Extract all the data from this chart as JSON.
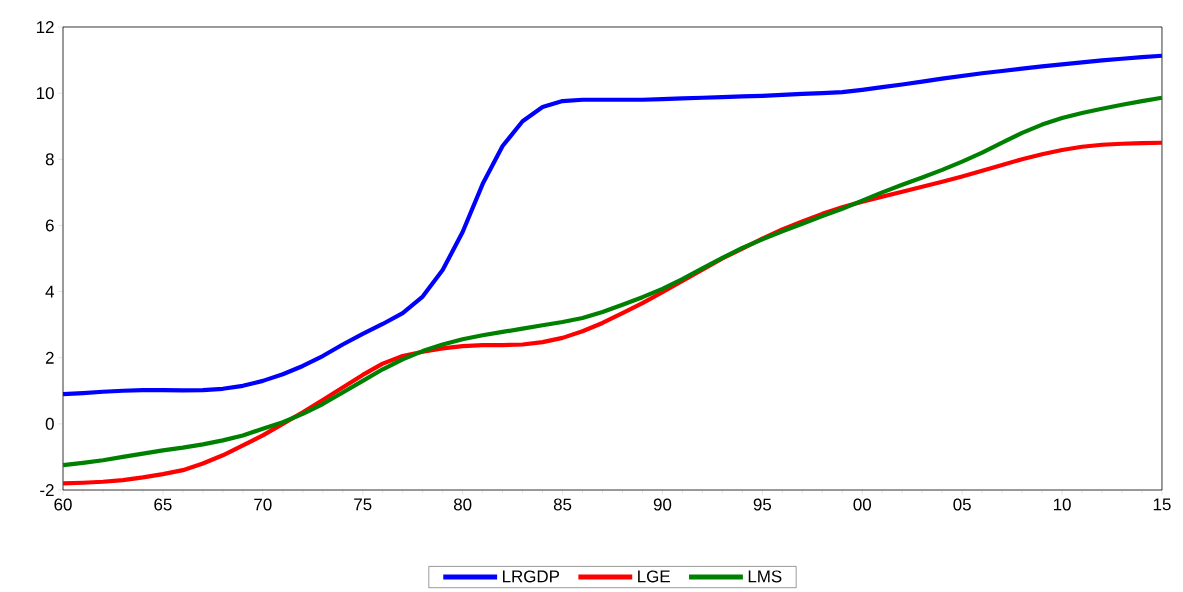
{
  "chart_data": {
    "type": "line",
    "x": [
      1960,
      1961,
      1962,
      1963,
      1964,
      1965,
      1966,
      1967,
      1968,
      1969,
      1970,
      1971,
      1972,
      1973,
      1974,
      1975,
      1976,
      1977,
      1978,
      1979,
      1980,
      1981,
      1982,
      1983,
      1984,
      1985,
      1986,
      1987,
      1988,
      1989,
      1990,
      1991,
      1992,
      1993,
      1994,
      1995,
      1996,
      1997,
      1998,
      1999,
      2000,
      2001,
      2002,
      2003,
      2004,
      2005,
      2006,
      2007,
      2008,
      2009,
      2010,
      2011,
      2012,
      2013,
      2014,
      2015
    ],
    "series": [
      {
        "name": "LRGDP",
        "color": "#0000ff",
        "values": [
          0.9,
          0.93,
          0.97,
          1.0,
          1.02,
          1.02,
          1.01,
          1.02,
          1.06,
          1.15,
          1.3,
          1.5,
          1.75,
          2.05,
          2.4,
          2.72,
          3.02,
          3.35,
          3.85,
          4.65,
          5.8,
          7.25,
          8.4,
          9.15,
          9.58,
          9.76,
          9.8,
          9.8,
          9.8,
          9.8,
          9.82,
          9.84,
          9.86,
          9.88,
          9.9,
          9.92,
          9.95,
          9.98,
          10.0,
          10.03,
          10.1,
          10.18,
          10.26,
          10.35,
          10.44,
          10.52,
          10.6,
          10.67,
          10.74,
          10.81,
          10.87,
          10.93,
          10.99,
          11.04,
          11.09,
          11.13
        ]
      },
      {
        "name": "LGE",
        "color": "#ff0000",
        "values": [
          -1.8,
          -1.78,
          -1.75,
          -1.7,
          -1.62,
          -1.52,
          -1.4,
          -1.2,
          -0.95,
          -0.65,
          -0.35,
          0.0,
          0.35,
          0.72,
          1.1,
          1.48,
          1.82,
          2.05,
          2.18,
          2.28,
          2.35,
          2.38,
          2.38,
          2.4,
          2.47,
          2.6,
          2.8,
          3.05,
          3.35,
          3.65,
          3.98,
          4.32,
          4.66,
          5.0,
          5.3,
          5.6,
          5.88,
          6.12,
          6.35,
          6.55,
          6.72,
          6.87,
          7.02,
          7.17,
          7.32,
          7.48,
          7.65,
          7.83,
          8.0,
          8.15,
          8.28,
          8.38,
          8.44,
          8.47,
          8.49,
          8.5
        ]
      },
      {
        "name": "LMS",
        "color": "#008000",
        "values": [
          -1.25,
          -1.18,
          -1.1,
          -1.0,
          -0.9,
          -0.8,
          -0.72,
          -0.62,
          -0.5,
          -0.35,
          -0.15,
          0.05,
          0.3,
          0.6,
          0.95,
          1.3,
          1.65,
          1.95,
          2.2,
          2.4,
          2.56,
          2.68,
          2.78,
          2.88,
          2.98,
          3.08,
          3.2,
          3.38,
          3.6,
          3.83,
          4.08,
          4.38,
          4.7,
          5.02,
          5.32,
          5.58,
          5.82,
          6.05,
          6.28,
          6.5,
          6.75,
          7.0,
          7.23,
          7.45,
          7.68,
          7.93,
          8.2,
          8.5,
          8.8,
          9.05,
          9.25,
          9.4,
          9.53,
          9.65,
          9.76,
          9.86
        ]
      }
    ],
    "xlim": [
      1960,
      2015
    ],
    "xticks": [
      {
        "value": 1960,
        "label": "60"
      },
      {
        "value": 1965,
        "label": "65"
      },
      {
        "value": 1970,
        "label": "70"
      },
      {
        "value": 1975,
        "label": "75"
      },
      {
        "value": 1980,
        "label": "80"
      },
      {
        "value": 1985,
        "label": "85"
      },
      {
        "value": 1990,
        "label": "90"
      },
      {
        "value": 1995,
        "label": "95"
      },
      {
        "value": 2000,
        "label": "00"
      },
      {
        "value": 2005,
        "label": "05"
      },
      {
        "value": 2010,
        "label": "10"
      },
      {
        "value": 2015,
        "label": "15"
      }
    ],
    "ylim": [
      -2,
      12
    ],
    "yticks": [
      -2,
      0,
      2,
      4,
      6,
      8,
      10,
      12
    ],
    "legend": "bottom",
    "marker": "none",
    "line_style": "solid"
  }
}
